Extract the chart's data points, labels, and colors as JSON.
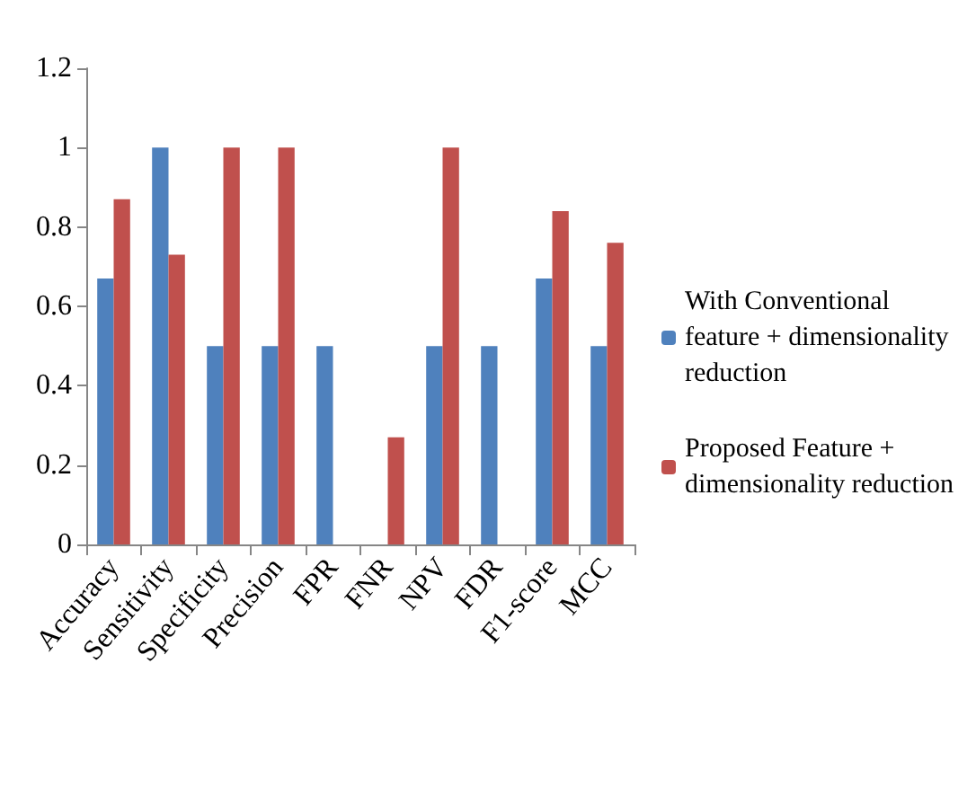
{
  "chart_data": {
    "type": "bar",
    "categories": [
      "Accuracy",
      "Sensitivity",
      "Specificity",
      "Precision",
      "FPR",
      "FNR",
      "NPV",
      "FDR",
      "F1-score",
      "MCC"
    ],
    "series": [
      {
        "name": "With Conventional feature + dimensionality reduction",
        "color": "#4f81bd",
        "values": [
          0.67,
          1,
          0.5,
          0.5,
          0.5,
          0,
          0.5,
          0.5,
          0.67,
          0.5
        ]
      },
      {
        "name": "Proposed Feature + dimensionality reduction",
        "color": "#c0504d",
        "values": [
          0.87,
          0.73,
          1,
          1,
          0,
          0.27,
          1,
          0,
          0.84,
          0.76
        ]
      }
    ],
    "ylim": [
      0,
      1.2
    ],
    "yticks": [
      0,
      0.2,
      0.4,
      0.6,
      0.8,
      1,
      1.2
    ],
    "grid": false,
    "legend": "right"
  }
}
